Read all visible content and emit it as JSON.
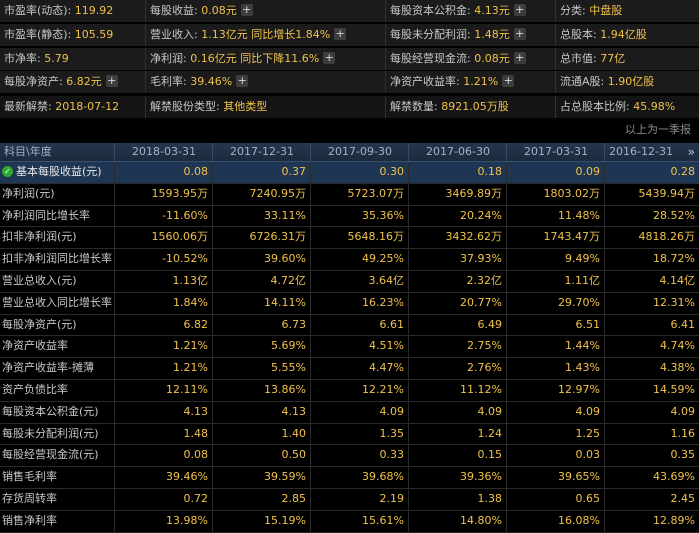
{
  "summary": {
    "row1": {
      "pe_dynamic_label": "市盈率(动态):",
      "pe_dynamic_value": "119.92",
      "eps_label": "每股收益:",
      "eps_value": "0.08元",
      "capital_reserve_label": "每股资本公积金:",
      "capital_reserve_value": "4.13元",
      "category_label": "分类:",
      "category_value": "中盘股"
    },
    "row2": {
      "pe_static_label": "市盈率(静态):",
      "pe_static_value": "105.59",
      "revenue_label": "营业收入:",
      "revenue_value": "1.13亿元",
      "revenue_growth": "同比增长1.84%",
      "undistributed_profit_label": "每股未分配利润:",
      "undistributed_profit_value": "1.48元",
      "total_shares_label": "总股本:",
      "total_shares_value": "1.94亿股"
    },
    "row3": {
      "pb_label": "市净率:",
      "pb_value": "5.79",
      "net_profit_label": "净利润:",
      "net_profit_value": "0.16亿元",
      "net_profit_change": "同比下降11.6%",
      "operating_cashflow_label": "每股经营现金流:",
      "operating_cashflow_value": "0.08元",
      "market_cap_label": "总市值:",
      "market_cap_value": "77亿"
    },
    "row4": {
      "nav_label": "每股净资产:",
      "nav_value": "6.82元",
      "gross_margin_label": "毛利率:",
      "gross_margin_value": "39.46%",
      "roe_label": "净资产收益率:",
      "roe_value": "1.21%",
      "float_a_label": "流通A股:",
      "float_a_value": "1.90亿股"
    },
    "row5": {
      "lift_date_label": "最新解禁:",
      "lift_date_value": "2018-07-12",
      "lift_type_label": "解禁股份类型:",
      "lift_type_value": "其他类型",
      "lift_amount_label": "解禁数量:",
      "lift_amount_value": "8921.05万股",
      "lift_ratio_label": "占总股本比例:",
      "lift_ratio_value": "45.98%"
    }
  },
  "table_note": "以上为一季报",
  "table": {
    "corner_label": "科目\\年度",
    "nav_arrow": "»",
    "columns": [
      "2018-03-31",
      "2017-12-31",
      "2017-09-30",
      "2017-06-30",
      "2017-03-31",
      "2016-12-31"
    ],
    "rows": [
      {
        "label": "基本每股收益(元)",
        "values": [
          "0.08",
          "0.37",
          "0.30",
          "0.18",
          "0.09",
          "0.28"
        ]
      },
      {
        "label": "净利润(元)",
        "values": [
          "1593.95万",
          "7240.95万",
          "5723.07万",
          "3469.89万",
          "1803.02万",
          "5439.94万"
        ]
      },
      {
        "label": "净利润同比增长率",
        "values": [
          "-11.60%",
          "33.11%",
          "35.36%",
          "20.24%",
          "11.48%",
          "28.52%"
        ]
      },
      {
        "label": "扣非净利润(元)",
        "values": [
          "1560.06万",
          "6726.31万",
          "5648.16万",
          "3432.62万",
          "1743.47万",
          "4818.26万"
        ]
      },
      {
        "label": "扣非净利润同比增长率",
        "values": [
          "-10.52%",
          "39.60%",
          "49.25%",
          "37.93%",
          "9.49%",
          "18.72%"
        ]
      },
      {
        "label": "营业总收入(元)",
        "values": [
          "1.13亿",
          "4.72亿",
          "3.64亿",
          "2.32亿",
          "1.11亿",
          "4.14亿"
        ]
      },
      {
        "label": "营业总收入同比增长率",
        "values": [
          "1.84%",
          "14.11%",
          "16.23%",
          "20.77%",
          "29.70%",
          "12.31%"
        ]
      },
      {
        "label": "每股净资产(元)",
        "values": [
          "6.82",
          "6.73",
          "6.61",
          "6.49",
          "6.51",
          "6.41"
        ]
      },
      {
        "label": "净资产收益率",
        "values": [
          "1.21%",
          "5.69%",
          "4.51%",
          "2.75%",
          "1.44%",
          "4.74%"
        ]
      },
      {
        "label": "净资产收益率-摊薄",
        "values": [
          "1.21%",
          "5.55%",
          "4.47%",
          "2.76%",
          "1.43%",
          "4.38%"
        ]
      },
      {
        "label": "资产负债比率",
        "values": [
          "12.11%",
          "13.86%",
          "12.21%",
          "11.12%",
          "12.97%",
          "14.59%"
        ]
      },
      {
        "label": "每股资本公积金(元)",
        "values": [
          "4.13",
          "4.13",
          "4.09",
          "4.09",
          "4.09",
          "4.09"
        ]
      },
      {
        "label": "每股未分配利润(元)",
        "values": [
          "1.48",
          "1.40",
          "1.35",
          "1.24",
          "1.25",
          "1.16"
        ]
      },
      {
        "label": "每股经营现金流(元)",
        "values": [
          "0.08",
          "0.50",
          "0.33",
          "0.15",
          "0.03",
          "0.35"
        ]
      },
      {
        "label": "销售毛利率",
        "values": [
          "39.46%",
          "39.59%",
          "39.68%",
          "39.36%",
          "39.65%",
          "43.69%"
        ]
      },
      {
        "label": "存货周转率",
        "values": [
          "0.72",
          "2.85",
          "2.19",
          "1.38",
          "0.65",
          "2.45"
        ]
      },
      {
        "label": "销售净利率",
        "values": [
          "13.98%",
          "15.19%",
          "15.61%",
          "14.80%",
          "16.08%",
          "12.89%"
        ]
      }
    ]
  }
}
